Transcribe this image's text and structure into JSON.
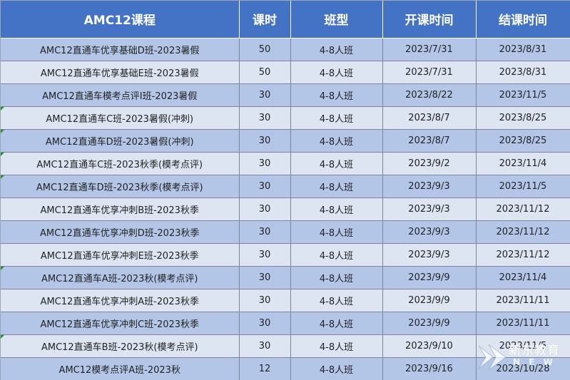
{
  "table": {
    "headers": {
      "course": "AMC12课程",
      "hours": "课时",
      "class_type": "班型",
      "start": "开课时间",
      "end": "结课时间"
    },
    "rows": [
      {
        "course": "AMC12直通车优享基础D班-2023暑假",
        "hours": "50",
        "class_type": "4-8人班",
        "start": "2023/7/31",
        "end": "2023/8/31",
        "marker": false
      },
      {
        "course": "AMC12直通车优享基础E班-2023暑假",
        "hours": "50",
        "class_type": "4-8人班",
        "start": "2023/7/31",
        "end": "2023/8/31",
        "marker": false
      },
      {
        "course": "AMC12直通车模考点评I班-2023暑假",
        "hours": "30",
        "class_type": "4-8人班",
        "start": "2023/8/22",
        "end": "2023/11/5",
        "marker": false
      },
      {
        "course": "AMC12直通车C班-2023暑假(冲刺)",
        "hours": "30",
        "class_type": "4-8人班",
        "start": "2023/8/7",
        "end": "2023/8/25",
        "marker": true
      },
      {
        "course": "AMC12直通车D班-2023暑假(冲刺)",
        "hours": "30",
        "class_type": "4-8人班",
        "start": "2023/8/7",
        "end": "2023/8/25",
        "marker": true
      },
      {
        "course": "AMC12直通车C班-2023秋季(模考点评)",
        "hours": "30",
        "class_type": "4-8人班",
        "start": "2023/9/2",
        "end": "2023/11/4",
        "marker": true
      },
      {
        "course": "AMC12直通车D班-2023秋季(模考点评)",
        "hours": "30",
        "class_type": "4-8人班",
        "start": "2023/9/3",
        "end": "2023/11/5",
        "marker": true
      },
      {
        "course": "AMC12直通车优享冲刺B班-2023秋季",
        "hours": "30",
        "class_type": "4-8人班",
        "start": "2023/9/3",
        "end": "2023/11/12",
        "marker": false
      },
      {
        "course": "AMC12直通车优享冲刺D班-2023秋季",
        "hours": "30",
        "class_type": "4-8人班",
        "start": "2023/9/3",
        "end": "2023/11/12",
        "marker": false
      },
      {
        "course": "AMC12直通车优享冲刺E班-2023秋季",
        "hours": "30",
        "class_type": "4-8人班",
        "start": "2023/9/3",
        "end": "2023/11/12",
        "marker": false
      },
      {
        "course": "AMC12直通车A班-2023秋(模考点评)",
        "hours": "30",
        "class_type": "4-8人班",
        "start": "2023/9/9",
        "end": "2023/11/4",
        "marker": true
      },
      {
        "course": "AMC12直通车优享冲刺A班-2023秋季",
        "hours": "30",
        "class_type": "4-8人班",
        "start": "2023/9/9",
        "end": "2023/11/11",
        "marker": false
      },
      {
        "course": "AMC12直通车优享冲刺C班-2023秋季",
        "hours": "30",
        "class_type": "4-8人班",
        "start": "2023/9/9",
        "end": "2023/11/11",
        "marker": false
      },
      {
        "course": "AMC12直通车B班-2023秋(模考点评)",
        "hours": "30",
        "class_type": "4-8人班",
        "start": "2023/9/10",
        "end": "2023/11/5",
        "marker": true
      },
      {
        "course": "AMC12模考点评A班-2023秋",
        "hours": "12",
        "class_type": "4-8人班",
        "start": "2023/9/16",
        "end": "2023/10/28",
        "marker": false
      }
    ]
  },
  "watermark": {
    "text": "新东教育",
    "sub": "N E W"
  },
  "colors": {
    "header_bg": "#4472c4",
    "row_dark": "#b4c6e7",
    "row_light": "#dde5f3",
    "marker": "#2e8b3a"
  }
}
